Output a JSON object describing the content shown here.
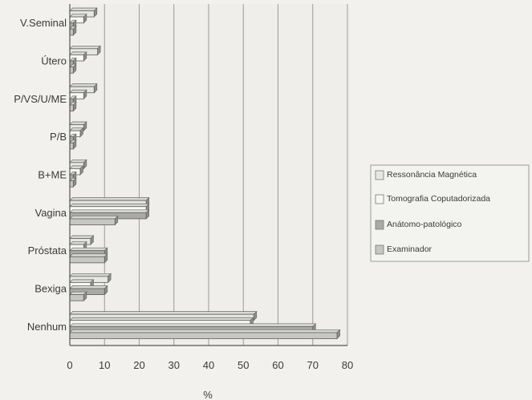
{
  "chart_data": {
    "type": "bar",
    "orientation": "horizontal",
    "categories": [
      "V.Seminal",
      "Útero",
      "P/VS/U/ME",
      "P/B",
      "B+ME",
      "Vagina",
      "Próstata",
      "Bexiga",
      "Nenhum"
    ],
    "series": [
      {
        "name": "Ressonância Magnética",
        "values": [
          7,
          8,
          7,
          4,
          4,
          22,
          6,
          11,
          53
        ]
      },
      {
        "name": "Tomografia Coputadorizada",
        "values": [
          4,
          4,
          4,
          3,
          3,
          22,
          4,
          6,
          52
        ]
      },
      {
        "name": "Anátomo-patológico",
        "values": [
          1,
          1,
          1,
          1,
          1,
          22,
          10,
          10,
          70
        ]
      },
      {
        "name": "Examinador",
        "values": [
          1,
          1,
          1,
          1,
          1,
          13,
          10,
          4,
          77
        ]
      }
    ],
    "series_colors": [
      "#e6e6e3",
      "#f7f7f6",
      "#a9a9a6",
      "#c6c6c3"
    ],
    "xlim": [
      0,
      80
    ],
    "x_ticks": [
      0,
      10,
      20,
      30,
      40,
      50,
      60,
      70,
      80
    ],
    "xlabel": "%",
    "ylabel": "",
    "grid": "vertical",
    "legend_position": "right"
  }
}
